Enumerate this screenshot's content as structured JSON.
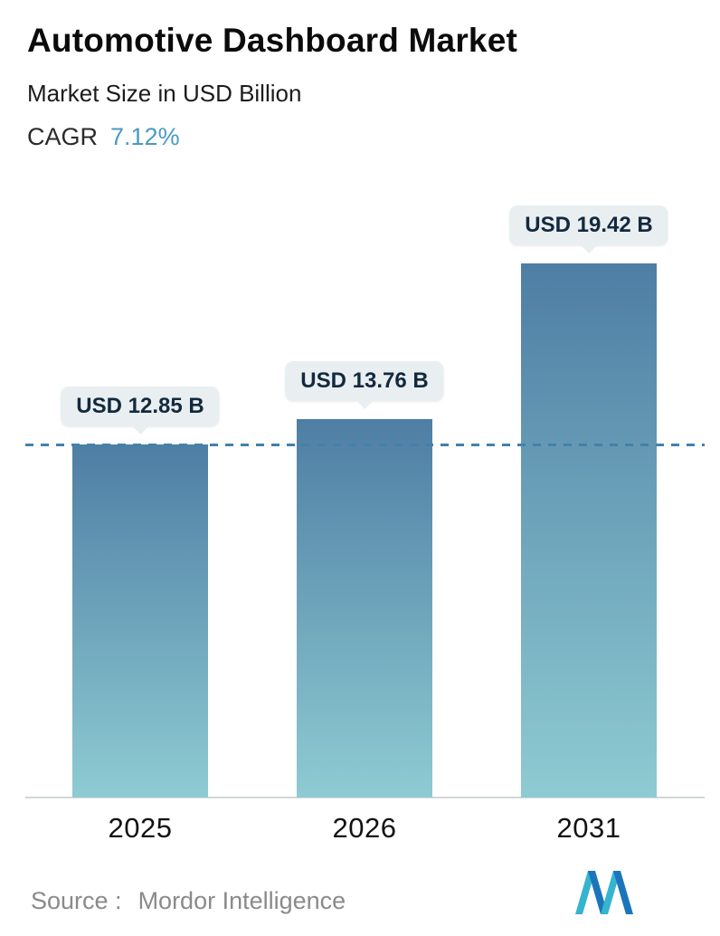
{
  "header": {
    "title": "Automotive Dashboard Market",
    "subtitle": "Market Size in USD Billion",
    "cagr_label": "CAGR",
    "cagr_value": "7.12%"
  },
  "chart_data": {
    "type": "bar",
    "title": "Automotive Dashboard Market",
    "subtitle": "Market Size in USD Billion",
    "cagr": "7.12%",
    "unit": "USD Billion",
    "categories": [
      "2025",
      "2026",
      "2031"
    ],
    "values": [
      12.85,
      13.76,
      19.42
    ],
    "bar_labels": [
      "USD 12.85 B",
      "USD 13.76 B",
      "USD 19.42 B"
    ],
    "ylim": [
      0,
      19.42
    ],
    "reference_line_value": 12.85,
    "grid": false,
    "legend": false,
    "bar_gradient": [
      "#4e7ea4",
      "#8ecbd2"
    ]
  },
  "theme": {
    "bar_top": "#4e7ea4",
    "bar_bottom": "#8ecbd2",
    "refline": "#4381ab",
    "baseline": "#d2d6d8",
    "pill_bg": "#e9eef1",
    "pill_text": "#13293d",
    "cagr_accent": "#4a9ac2",
    "source_text": "#8a8a8a",
    "logo_teal": "#35b4cf",
    "logo_blue": "#1b75bb"
  },
  "footer": {
    "source_label": "Source :",
    "source_value": "Mordor Intelligence",
    "logo": "mordor-intelligence-logo"
  }
}
